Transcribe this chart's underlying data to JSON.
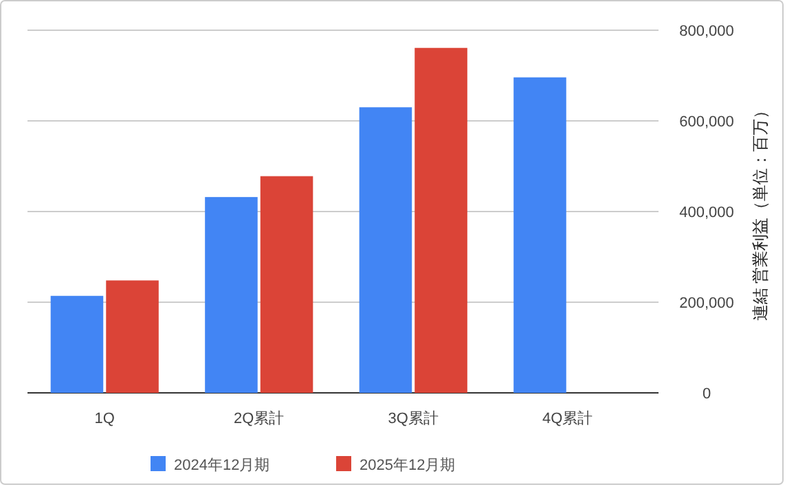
{
  "chart_data": {
    "type": "bar",
    "ylabel": "連結 営業利益（単位：百万）",
    "categories": [
      "1Q",
      "2Q累計",
      "3Q累計",
      "4Q累計"
    ],
    "series": [
      {
        "name": "2024年12月期",
        "color": "#4285f4",
        "values": [
          214000,
          432000,
          630000,
          696000
        ]
      },
      {
        "name": "2025年12月期",
        "color": "#db4437",
        "values": [
          248000,
          478000,
          761000,
          null
        ]
      }
    ],
    "ylim": [
      0,
      800000
    ],
    "yticks": [
      {
        "value": 0,
        "label": "0"
      },
      {
        "value": 200000,
        "label": "200,000"
      },
      {
        "value": 400000,
        "label": "400,000"
      },
      {
        "value": 600000,
        "label": "600,000"
      },
      {
        "value": 800000,
        "label": "800,000"
      }
    ],
    "grid": "y",
    "legend": "bottom"
  }
}
